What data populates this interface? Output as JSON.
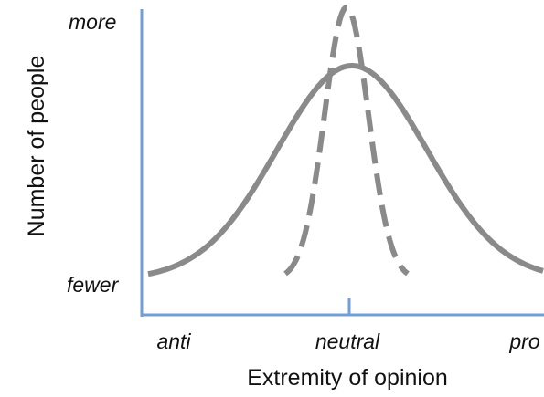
{
  "axes": {
    "y_label": "Number of people",
    "y_top": "more",
    "y_bottom": "fewer",
    "x_label": "Extremity of opinion",
    "x_left": "anti",
    "x_center": "neutral",
    "x_right": "pro"
  }
}
